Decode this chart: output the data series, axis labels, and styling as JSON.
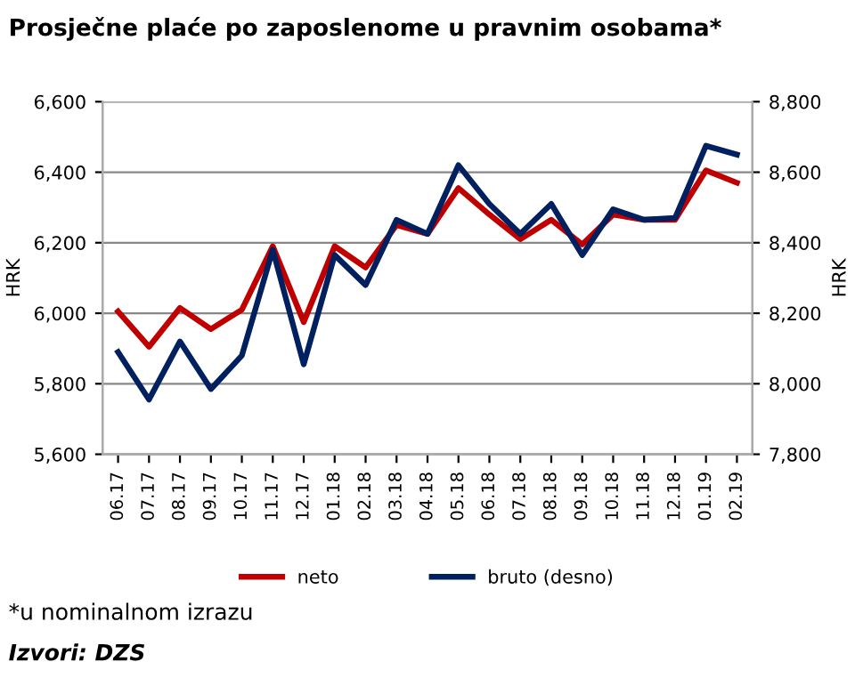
{
  "chart_data": {
    "type": "line",
    "title": "Prosječne plaće po zaposlenome u pravnim osobama*",
    "ylabel": "HRK",
    "y2label": "HRK",
    "categories": [
      "06.17",
      "07.17",
      "08.17",
      "09.17",
      "10.17",
      "11.17",
      "12.17",
      "01.18",
      "02.18",
      "03.18",
      "04.18",
      "05.18",
      "06.18",
      "07.18",
      "08.18",
      "09.18",
      "10.18",
      "11.18",
      "12.18",
      "01.19",
      "02.19"
    ],
    "series": [
      {
        "name": "neto",
        "color": "#c00000",
        "values": [
          6005,
          5905,
          6015,
          5955,
          6010,
          6190,
          5975,
          6190,
          6130,
          6250,
          6225,
          6355,
          6280,
          6210,
          6265,
          6195,
          6280,
          6265,
          6265,
          6405,
          6370
        ]
      },
      {
        "name": "bruto (desno)",
        "color": "#002060",
        "axis": "y2",
        "values": [
          8090,
          7955,
          8120,
          7985,
          8080,
          8380,
          8055,
          8365,
          8280,
          8465,
          8425,
          8620,
          8510,
          8425,
          8510,
          8365,
          8495,
          8465,
          8470,
          8675,
          8650
        ]
      }
    ],
    "ylim": [
      5600,
      6600
    ],
    "yticks": [
      {
        "value": 5600,
        "label": "5,600"
      },
      {
        "value": 5800,
        "label": "5,800"
      },
      {
        "value": 6000,
        "label": "6,000"
      },
      {
        "value": 6200,
        "label": "6,200"
      },
      {
        "value": 6400,
        "label": "6,400"
      },
      {
        "value": 6600,
        "label": "6,600"
      }
    ],
    "y2lim": [
      7800,
      8800
    ],
    "y2ticks": [
      {
        "value": 7800,
        "label": "7,800"
      },
      {
        "value": 8000,
        "label": "8,000"
      },
      {
        "value": 8200,
        "label": "8,200"
      },
      {
        "value": 8400,
        "label": "8,400"
      },
      {
        "value": 8600,
        "label": "8,600"
      },
      {
        "value": 8800,
        "label": "8,800"
      }
    ],
    "grid": "y",
    "legend": "bottom",
    "marker": "none",
    "line_style": "solid",
    "annotations": [
      "*u nominalnom izrazu",
      "Izvori: DZS"
    ]
  }
}
